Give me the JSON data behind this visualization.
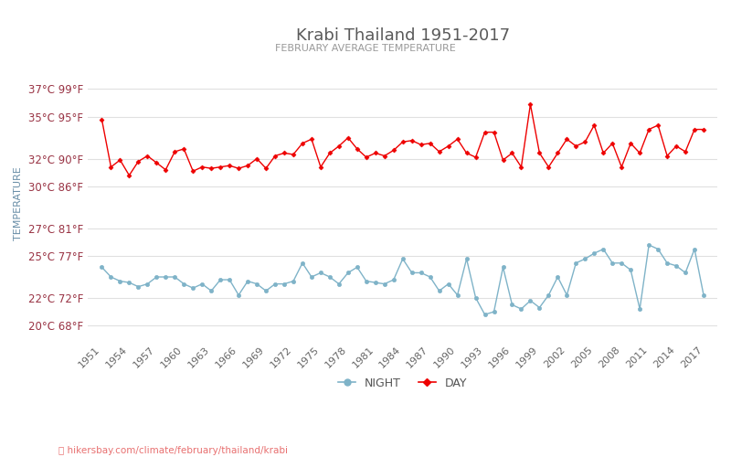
{
  "title": "Krabi Thailand 1951-2017",
  "subtitle": "FEBRUARY AVERAGE TEMPERATURE",
  "ylabel": "TEMPERATURE",
  "background_color": "#ffffff",
  "title_color": "#5a5a5a",
  "subtitle_color": "#999999",
  "ylabel_color": "#6a8fa8",
  "grid_color": "#e0e0e0",
  "years": [
    1951,
    1952,
    1953,
    1954,
    1955,
    1956,
    1957,
    1958,
    1959,
    1960,
    1961,
    1962,
    1963,
    1964,
    1965,
    1966,
    1967,
    1968,
    1969,
    1970,
    1971,
    1972,
    1973,
    1974,
    1975,
    1976,
    1977,
    1978,
    1979,
    1980,
    1981,
    1982,
    1983,
    1984,
    1985,
    1986,
    1987,
    1988,
    1989,
    1990,
    1991,
    1992,
    1993,
    1994,
    1995,
    1996,
    1997,
    1998,
    1999,
    2000,
    2001,
    2002,
    2003,
    2004,
    2005,
    2006,
    2007,
    2008,
    2009,
    2010,
    2011,
    2012,
    2013,
    2014,
    2015,
    2016,
    2017
  ],
  "day_temps": [
    34.8,
    31.4,
    31.9,
    30.8,
    31.8,
    32.2,
    31.7,
    31.2,
    32.5,
    32.7,
    31.1,
    31.4,
    31.3,
    31.4,
    31.5,
    31.3,
    31.5,
    32.0,
    31.3,
    32.2,
    32.4,
    32.3,
    33.1,
    33.4,
    31.4,
    32.4,
    32.9,
    33.5,
    32.7,
    32.1,
    32.4,
    32.2,
    32.6,
    33.2,
    33.3,
    33.0,
    33.1,
    32.5,
    32.9,
    33.4,
    32.4,
    32.1,
    33.9,
    33.9,
    31.9,
    32.4,
    31.4,
    35.9,
    32.4,
    31.4,
    32.4,
    33.4,
    32.9,
    33.2,
    34.4,
    32.4,
    33.1,
    31.4,
    33.1,
    32.4,
    34.1,
    34.4,
    32.2,
    32.9,
    32.5,
    34.1,
    34.1
  ],
  "night_temps": [
    24.2,
    23.5,
    23.2,
    23.1,
    22.8,
    23.0,
    23.5,
    23.5,
    23.5,
    23.0,
    22.7,
    23.0,
    22.5,
    23.3,
    23.3,
    22.2,
    23.2,
    23.0,
    22.5,
    23.0,
    23.0,
    23.2,
    24.5,
    23.5,
    23.8,
    23.5,
    23.0,
    23.8,
    24.2,
    23.2,
    23.1,
    23.0,
    23.3,
    24.8,
    23.8,
    23.8,
    23.5,
    22.5,
    23.0,
    22.2,
    24.8,
    22.0,
    20.8,
    21.0,
    24.2,
    21.5,
    21.2,
    21.8,
    21.3,
    22.2,
    23.5,
    22.2,
    24.5,
    24.8,
    25.2,
    25.5,
    24.5,
    24.5,
    24.0,
    21.2,
    25.8,
    25.5,
    24.5,
    24.3,
    23.8,
    25.5,
    22.2
  ],
  "day_color": "#ee0000",
  "night_color": "#7fb3c8",
  "yticks_c": [
    20,
    22,
    25,
    27,
    30,
    32,
    35,
    37
  ],
  "yticks_f": [
    68,
    72,
    77,
    81,
    86,
    90,
    95,
    99
  ],
  "ylim": [
    19.0,
    38.5
  ],
  "xlim": [
    1949.5,
    2018.5
  ],
  "xtick_years": [
    1951,
    1954,
    1957,
    1960,
    1963,
    1966,
    1969,
    1972,
    1975,
    1978,
    1981,
    1984,
    1987,
    1990,
    1993,
    1996,
    1999,
    2002,
    2005,
    2008,
    2011,
    2014,
    2017
  ],
  "watermark": "hikersbay.com/climate/february/thailand/krabi",
  "watermark_color": "#e87070",
  "legend_night_label": "NIGHT",
  "legend_day_label": "DAY"
}
